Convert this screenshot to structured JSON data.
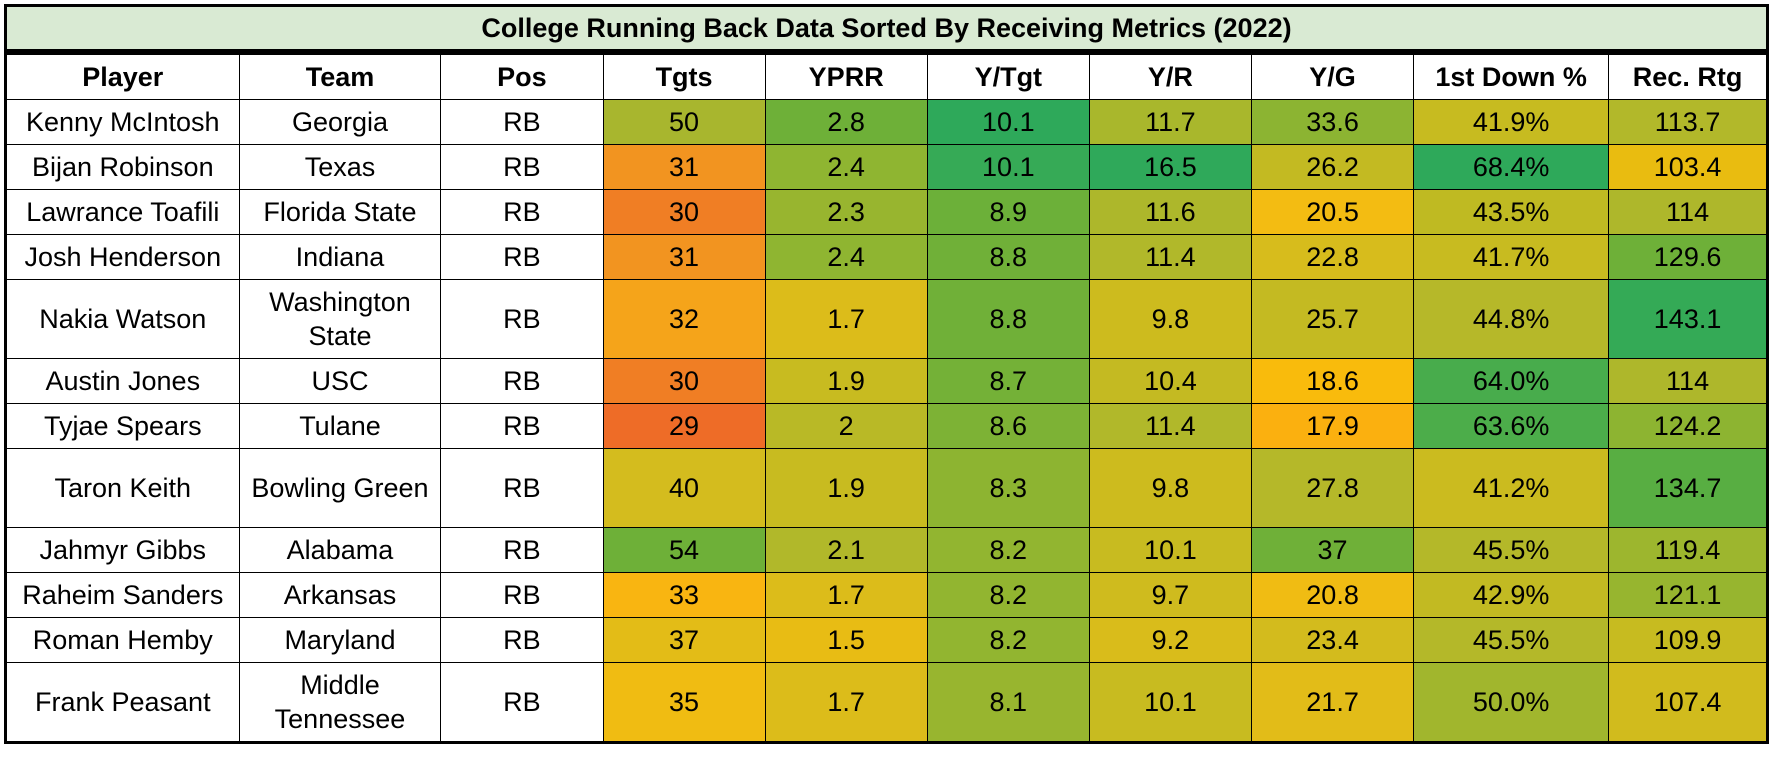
{
  "title": "College Running Back Data Sorted By Receiving Metrics (2022)",
  "columns": [
    "Player",
    "Team",
    "Pos",
    "Tgts",
    "YPRR",
    "Y/Tgt",
    "Y/R",
    "Y/G",
    "1st Down %",
    "Rec. Rtg"
  ],
  "rows": [
    {
      "player": "Kenny McIntosh",
      "team": "Georgia",
      "pos": "RB",
      "tgts": "50",
      "yprr": "2.8",
      "ytgt": "10.1",
      "yr": "11.7",
      "yg": "33.6",
      "first_down": "41.9%",
      "rec_rtg": "113.7",
      "colors": {
        "tgts": "#a8b62e",
        "yprr": "#6eb038",
        "ytgt": "#2ea95a",
        "yr": "#a9b72c",
        "yg": "#8cb432",
        "first_down": "#c7bb20",
        "rec_rtg": "#b2b82a"
      }
    },
    {
      "player": "Bijan Robinson",
      "team": "Texas",
      "pos": "RB",
      "tgts": "31",
      "yprr": "2.4",
      "ytgt": "10.1",
      "yr": "16.5",
      "yg": "26.2",
      "first_down": "68.4%",
      "rec_rtg": "103.4",
      "colors": {
        "tgts": "#f29420",
        "yprr": "#8fb531",
        "ytgt": "#36aa56",
        "yr": "#2fa95a",
        "yg": "#c3ba22",
        "first_down": "#2ea95a",
        "rec_rtg": "#e9bc10"
      }
    },
    {
      "player": "Lawrance Toafili",
      "team": "Florida State",
      "pos": "RB",
      "tgts": "30",
      "yprr": "2.3",
      "ytgt": "8.9",
      "yr": "11.6",
      "yg": "20.5",
      "first_down": "43.5%",
      "rec_rtg": "114",
      "colors": {
        "tgts": "#f07e24",
        "yprr": "#98b52f",
        "ytgt": "#6cb039",
        "yr": "#adb72b",
        "yg": "#f3bc12",
        "first_down": "#bfba22",
        "rec_rtg": "#aeb72b"
      }
    },
    {
      "player": "Josh Henderson",
      "team": "Indiana",
      "pos": "RB",
      "tgts": "31",
      "yprr": "2.4",
      "ytgt": "8.8",
      "yr": "11.4",
      "yg": "22.8",
      "first_down": "41.7%",
      "rec_rtg": "129.6",
      "colors": {
        "tgts": "#f29420",
        "yprr": "#8fb531",
        "ytgt": "#70b038",
        "yr": "#b1b82a",
        "yg": "#d7bc1c",
        "first_down": "#c8bb20",
        "rec_rtg": "#6eb038"
      }
    },
    {
      "player": "Nakia Watson",
      "team": "Washington State",
      "pos": "RB",
      "tgts": "32",
      "yprr": "1.7",
      "ytgt": "8.8",
      "yr": "9.8",
      "yg": "25.7",
      "first_down": "44.8%",
      "rec_rtg": "143.1",
      "colors": {
        "tgts": "#f5a41a",
        "yprr": "#dcbc1a",
        "ytgt": "#70b038",
        "yr": "#cdbb1e",
        "yg": "#c4ba22",
        "first_down": "#b6b829",
        "rec_rtg": "#34aa56"
      }
    },
    {
      "player": "Austin Jones",
      "team": "USC",
      "pos": "RB",
      "tgts": "30",
      "yprr": "1.9",
      "ytgt": "8.7",
      "yr": "10.4",
      "yg": "18.6",
      "first_down": "64.0%",
      "rec_rtg": "114",
      "colors": {
        "tgts": "#f07e24",
        "yprr": "#c8bb20",
        "ytgt": "#74b137",
        "yr": "#c4ba22",
        "yg": "#f9bb0c",
        "first_down": "#48ac4c",
        "rec_rtg": "#aeb72b"
      }
    },
    {
      "player": "Tyjae Spears",
      "team": "Tulane",
      "pos": "RB",
      "tgts": "29",
      "yprr": "2",
      "ytgt": "8.6",
      "yr": "11.4",
      "yg": "17.9",
      "first_down": "63.6%",
      "rec_rtg": "124.2",
      "colors": {
        "tgts": "#ee6c27",
        "yprr": "#b9b926",
        "ytgt": "#7db235",
        "yr": "#b1b82a",
        "yg": "#fbb00f",
        "first_down": "#4cad4a",
        "rec_rtg": "#8db431"
      }
    },
    {
      "player": "Taron Keith",
      "team": "Bowling Green",
      "pos": "RB",
      "tgts": "40",
      "yprr": "1.9",
      "ytgt": "8.3",
      "yr": "9.8",
      "yg": "27.8",
      "first_down": "41.2%",
      "rec_rtg": "134.7",
      "colors": {
        "tgts": "#d4bc1e",
        "yprr": "#c8bb20",
        "ytgt": "#8db431",
        "yr": "#cdbb1e",
        "yg": "#b5b829",
        "first_down": "#cbbb1f",
        "rec_rtg": "#58ae42"
      }
    },
    {
      "player": "Jahmyr Gibbs",
      "team": "Alabama",
      "pos": "RB",
      "tgts": "54",
      "yprr": "2.1",
      "ytgt": "8.2",
      "yr": "10.1",
      "yg": "37",
      "first_down": "45.5%",
      "rec_rtg": "119.4",
      "colors": {
        "tgts": "#6eb038",
        "yprr": "#b1b82a",
        "ytgt": "#92b530",
        "yr": "#c8bb20",
        "yg": "#6fb038",
        "first_down": "#b4b829",
        "rec_rtg": "#9db62e"
      }
    },
    {
      "player": "Raheim Sanders",
      "team": "Arkansas",
      "pos": "RB",
      "tgts": "33",
      "yprr": "1.7",
      "ytgt": "8.2",
      "yr": "9.7",
      "yg": "20.8",
      "first_down": "42.9%",
      "rec_rtg": "121.1",
      "colors": {
        "tgts": "#f9b511",
        "yprr": "#dcbc1a",
        "ytgt": "#92b530",
        "yr": "#cfbb1e",
        "yg": "#f0bc13",
        "first_down": "#c2ba22",
        "rec_rtg": "#97b52f"
      }
    },
    {
      "player": "Roman Hemby",
      "team": "Maryland",
      "pos": "RB",
      "tgts": "37",
      "yprr": "1.5",
      "ytgt": "8.2",
      "yr": "9.2",
      "yg": "23.4",
      "first_down": "45.5%",
      "rec_rtg": "109.9",
      "colors": {
        "tgts": "#e3bc17",
        "yprr": "#e8bc14",
        "ytgt": "#92b530",
        "yr": "#d9bc1b",
        "yg": "#d3bb1d",
        "first_down": "#b4b829",
        "rec_rtg": "#c7bb20"
      }
    },
    {
      "player": "Frank Peasant",
      "team": "Middle Tennessee",
      "pos": "RB",
      "tgts": "35",
      "yprr": "1.7",
      "ytgt": "8.1",
      "yr": "10.1",
      "yg": "21.7",
      "first_down": "50.0%",
      "rec_rtg": "107.4",
      "colors": {
        "tgts": "#f0bc12",
        "yprr": "#dcbc1a",
        "ytgt": "#98b52f",
        "yr": "#c8bb20",
        "yg": "#e2bc18",
        "first_down": "#a1b62d",
        "rec_rtg": "#d1bb1d"
      }
    }
  ]
}
